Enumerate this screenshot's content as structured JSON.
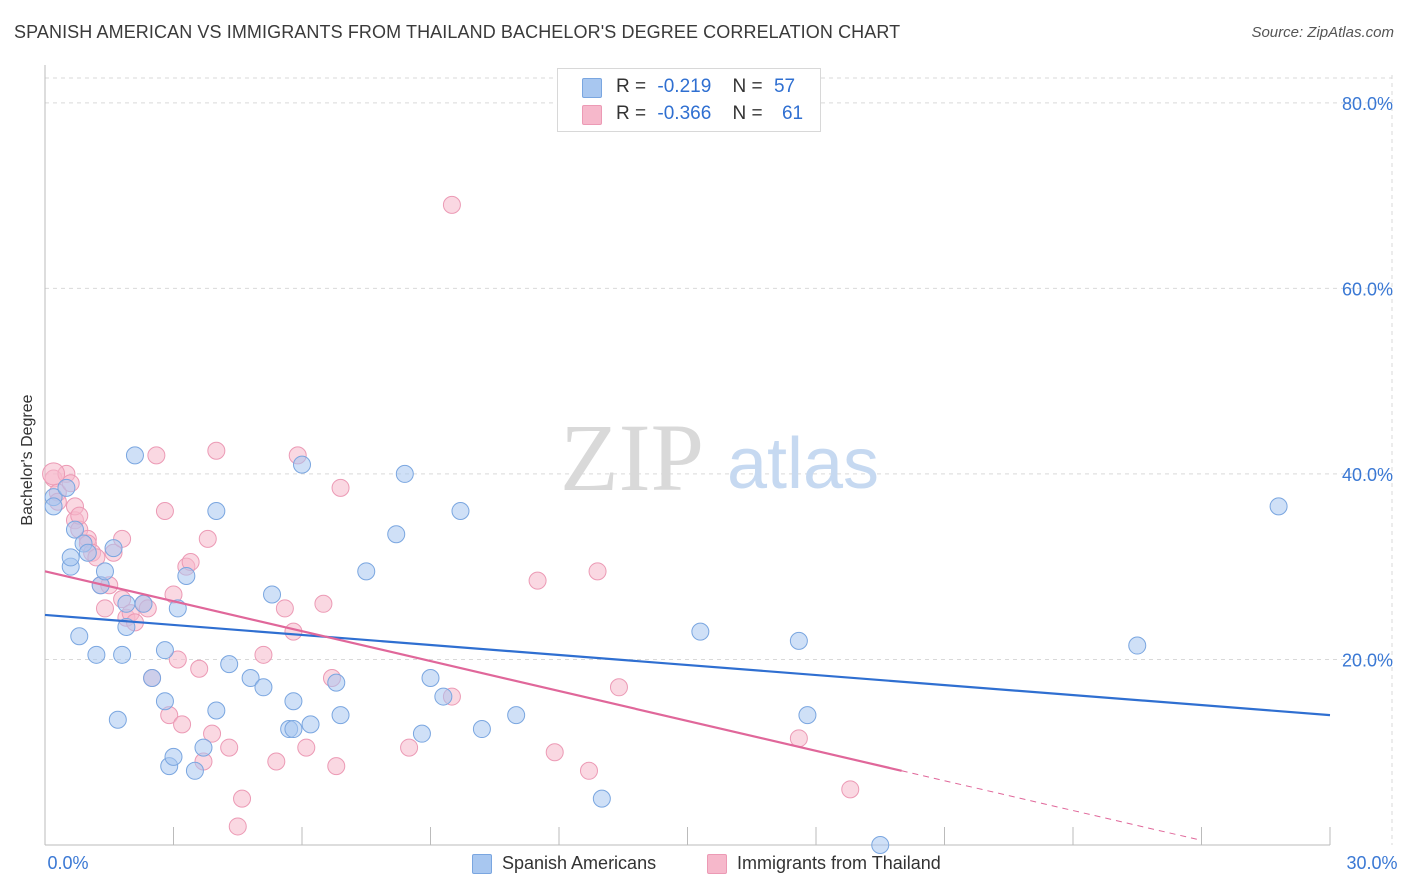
{
  "title": "SPANISH AMERICAN VS IMMIGRANTS FROM THAILAND BACHELOR'S DEGREE CORRELATION CHART",
  "source": "Source: ZipAtlas.com",
  "watermark": {
    "zip": "ZIP",
    "atlas": "atlas"
  },
  "legend_top": [
    {
      "r_label": "R =",
      "r_value": "-0.219",
      "n_label": "N =",
      "n_value": "57"
    },
    {
      "r_label": "R =",
      "r_value": "-0.366",
      "n_label": "N =",
      "n_value": "61"
    }
  ],
  "legend_bottom": [
    "Spanish Americans",
    "Immigrants from Thailand"
  ],
  "colors": {
    "blue_fill": "#a8c7f0",
    "blue_stroke": "#7aa6e0",
    "blue_line": "#2f6fd1",
    "pink_fill": "#f6b8cb",
    "pink_stroke": "#ec9ab5",
    "pink_line": "#e0679a",
    "axis_text": "#3a78d4",
    "grid": "#d9d9d9"
  },
  "chart_data": {
    "type": "scatter",
    "title": "SPANISH AMERICAN VS IMMIGRANTS FROM THAILAND BACHELOR'S DEGREE CORRELATION CHART",
    "xlabel": "",
    "ylabel": "Bachelor's Degree",
    "xlim": [
      0,
      30
    ],
    "ylim": [
      0,
      83
    ],
    "x_tick_labels": [
      "0.0%",
      "30.0%"
    ],
    "y_ticks": [
      20,
      40,
      60,
      80
    ],
    "y_tick_labels": [
      "20.0%",
      "40.0%",
      "60.0%",
      "80.0%"
    ],
    "series": [
      {
        "name": "Spanish Americans",
        "r": -0.219,
        "n": 57,
        "trend": {
          "x0": 0,
          "y0": 24.8,
          "x1": 30,
          "y1": 14.0
        },
        "points": [
          [
            0.2,
            37.5
          ],
          [
            0.2,
            36.5
          ],
          [
            0.5,
            38.5
          ],
          [
            0.6,
            30.0
          ],
          [
            0.6,
            31.0
          ],
          [
            0.7,
            34.0
          ],
          [
            0.8,
            22.5
          ],
          [
            0.9,
            32.5
          ],
          [
            1.0,
            31.5
          ],
          [
            1.2,
            20.5
          ],
          [
            1.3,
            28.0
          ],
          [
            1.4,
            29.5
          ],
          [
            1.6,
            32.0
          ],
          [
            1.7,
            13.5
          ],
          [
            1.8,
            20.5
          ],
          [
            1.9,
            23.5
          ],
          [
            2.1,
            42.0
          ],
          [
            2.3,
            26.0
          ],
          [
            2.5,
            18.0
          ],
          [
            2.8,
            15.5
          ],
          [
            2.8,
            21.0
          ],
          [
            2.9,
            8.5
          ],
          [
            3.0,
            9.5
          ],
          [
            3.1,
            25.5
          ],
          [
            3.3,
            29.0
          ],
          [
            3.5,
            8.0
          ],
          [
            3.7,
            10.5
          ],
          [
            4.0,
            14.5
          ],
          [
            4.0,
            36.0
          ],
          [
            4.3,
            19.5
          ],
          [
            4.8,
            18.0
          ],
          [
            5.1,
            17.0
          ],
          [
            5.3,
            27.0
          ],
          [
            5.7,
            12.5
          ],
          [
            5.8,
            12.5
          ],
          [
            5.8,
            15.5
          ],
          [
            6.0,
            41.0
          ],
          [
            6.2,
            13.0
          ],
          [
            6.8,
            17.5
          ],
          [
            6.9,
            14.0
          ],
          [
            7.5,
            29.5
          ],
          [
            8.2,
            33.5
          ],
          [
            8.4,
            40.0
          ],
          [
            8.8,
            12.0
          ],
          [
            9.0,
            18.0
          ],
          [
            9.3,
            16.0
          ],
          [
            9.7,
            36.0
          ],
          [
            10.2,
            12.5
          ],
          [
            11.0,
            14.0
          ],
          [
            13.0,
            5.0
          ],
          [
            15.3,
            23.0
          ],
          [
            17.6,
            22.0
          ],
          [
            17.8,
            14.0
          ],
          [
            19.5,
            0.0
          ],
          [
            25.5,
            21.5
          ],
          [
            28.8,
            36.5
          ],
          [
            1.9,
            26.0
          ]
        ]
      },
      {
        "name": "Immigrants from Thailand",
        "r": -0.366,
        "n": 61,
        "trend": {
          "x0": 0,
          "y0": 29.5,
          "x1": 20.0,
          "y1": 8.0,
          "x1_dash": 27.0,
          "y1_dash": 0.5
        },
        "points": [
          [
            0.2,
            39.5
          ],
          [
            0.3,
            38.0
          ],
          [
            0.3,
            37.0
          ],
          [
            0.5,
            40.0
          ],
          [
            0.6,
            39.0
          ],
          [
            0.7,
            35.0
          ],
          [
            0.7,
            36.5
          ],
          [
            0.8,
            34.0
          ],
          [
            0.8,
            35.5
          ],
          [
            1.0,
            33.0
          ],
          [
            1.0,
            32.5
          ],
          [
            1.1,
            31.5
          ],
          [
            1.2,
            31.0
          ],
          [
            1.3,
            28.0
          ],
          [
            1.4,
            25.5
          ],
          [
            1.5,
            28.0
          ],
          [
            1.6,
            31.5
          ],
          [
            1.8,
            33.0
          ],
          [
            1.8,
            26.5
          ],
          [
            1.9,
            24.5
          ],
          [
            2.0,
            25.0
          ],
          [
            2.1,
            24.0
          ],
          [
            2.3,
            26.0
          ],
          [
            2.4,
            25.5
          ],
          [
            2.5,
            18.0
          ],
          [
            2.6,
            42.0
          ],
          [
            2.8,
            36.0
          ],
          [
            2.9,
            14.0
          ],
          [
            3.0,
            27.0
          ],
          [
            3.1,
            20.0
          ],
          [
            3.2,
            13.0
          ],
          [
            3.3,
            30.0
          ],
          [
            3.4,
            30.5
          ],
          [
            3.6,
            19.0
          ],
          [
            3.7,
            9.0
          ],
          [
            3.8,
            33.0
          ],
          [
            3.9,
            12.0
          ],
          [
            4.0,
            42.5
          ],
          [
            4.3,
            10.5
          ],
          [
            4.6,
            5.0
          ],
          [
            4.5,
            2.0
          ],
          [
            5.1,
            20.5
          ],
          [
            5.4,
            9.0
          ],
          [
            5.6,
            25.5
          ],
          [
            5.8,
            23.0
          ],
          [
            5.9,
            42.0
          ],
          [
            6.1,
            10.5
          ],
          [
            6.5,
            26.0
          ],
          [
            6.7,
            18.0
          ],
          [
            6.9,
            38.5
          ],
          [
            6.8,
            8.5
          ],
          [
            8.5,
            10.5
          ],
          [
            9.5,
            69.0
          ],
          [
            9.5,
            16.0
          ],
          [
            11.5,
            28.5
          ],
          [
            11.9,
            10.0
          ],
          [
            12.7,
            8.0
          ],
          [
            12.9,
            29.5
          ],
          [
            13.4,
            17.0
          ],
          [
            17.6,
            11.5
          ],
          [
            18.8,
            6.0
          ]
        ]
      }
    ]
  }
}
